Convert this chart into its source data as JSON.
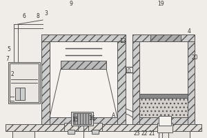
{
  "bg_color": "#f0ede8",
  "line_color": "#555555",
  "lw": 0.7,
  "labels": [
    [
      18,
      92,
      "2"
    ],
    [
      13,
      129,
      "5"
    ],
    [
      35,
      177,
      "6"
    ],
    [
      11,
      115,
      "7"
    ],
    [
      55,
      176,
      "8"
    ],
    [
      103,
      194,
      "9"
    ],
    [
      67,
      180,
      "3"
    ],
    [
      178,
      140,
      "13"
    ],
    [
      109,
      27,
      "15"
    ],
    [
      133,
      28,
      "16"
    ],
    [
      233,
      194,
      "19"
    ],
    [
      282,
      117,
      "20"
    ],
    [
      274,
      154,
      "4"
    ],
    [
      220,
      7,
      "21"
    ],
    [
      209,
      7,
      "22"
    ],
    [
      198,
      7,
      "23"
    ],
    [
      165,
      32,
      "A"
    ],
    [
      185,
      96,
      "10"
    ]
  ]
}
